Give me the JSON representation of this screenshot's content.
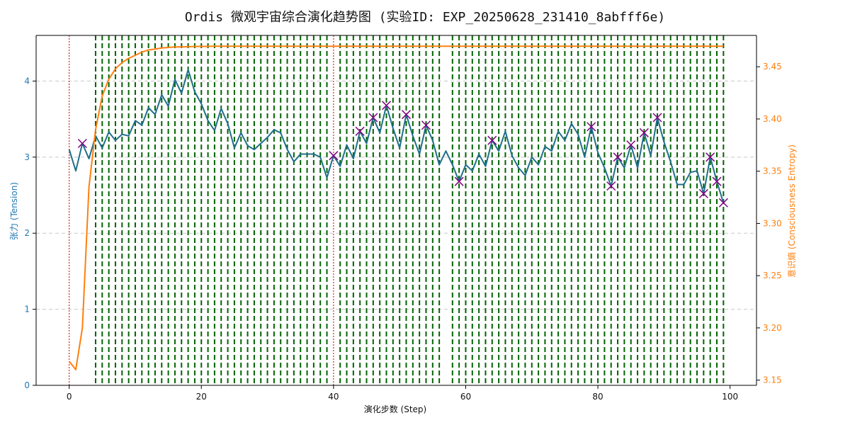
{
  "chart_data": {
    "type": "line",
    "title": "Ordis 微观宇宙综合演化趋势图 (实验ID: EXP_20250628_231410_8abfff6e)",
    "xlabel": "演化步数 (Step)",
    "ylabel_left": "张力 (Tension)",
    "ylabel_right": "意识熵 (Consciousness Entropy)",
    "xlim": [
      -5,
      104
    ],
    "ylim_left": [
      0,
      4.6
    ],
    "ylim_right": [
      3.145,
      3.48
    ],
    "x_ticks": [
      0,
      20,
      40,
      60,
      80,
      100
    ],
    "y_ticks_left": [
      0,
      1,
      2,
      3,
      4
    ],
    "y_ticks_right": [
      3.15,
      3.2,
      3.25,
      3.3,
      3.35,
      3.4,
      3.45
    ],
    "y_ticks_right_labels": [
      "3.15",
      "3.20",
      "3.25",
      "3.30",
      "3.35",
      "3.40",
      "3.45"
    ],
    "grid": "horizontal dashed",
    "colors": {
      "tension": "#1f6f8b",
      "entropy": "#ff7f0e",
      "green_lines": "#006400",
      "red_lines": "#d62728",
      "markers": "#800080",
      "left_axis": "#1f77b4",
      "right_axis": "#ff7f0e"
    },
    "series": [
      {
        "axis": "left",
        "x": [
          0,
          1,
          2,
          3,
          4,
          5,
          6,
          7,
          8,
          9,
          10,
          11,
          12,
          13,
          14,
          15,
          16,
          17,
          18,
          19,
          20,
          21,
          22,
          23,
          24,
          25,
          26,
          27,
          28,
          29,
          30,
          31,
          32,
          33,
          34,
          35,
          36,
          37,
          38,
          39,
          40,
          41,
          42,
          43,
          44,
          45,
          46,
          47,
          48,
          49,
          50,
          51,
          52,
          53,
          54,
          55,
          56,
          57,
          58,
          59,
          60,
          61,
          62,
          63,
          64,
          65,
          66,
          67,
          68,
          69,
          70,
          71,
          72,
          73,
          74,
          75,
          76,
          77,
          78,
          79,
          80,
          81,
          82,
          83,
          84,
          85,
          86,
          87,
          88,
          89,
          90,
          91,
          92,
          93,
          94,
          95,
          96,
          97,
          98,
          99
        ],
        "values": [
          3.1,
          2.82,
          3.18,
          2.98,
          3.28,
          3.12,
          3.33,
          3.22,
          3.3,
          3.28,
          3.48,
          3.42,
          3.65,
          3.56,
          3.82,
          3.67,
          4.02,
          3.84,
          4.15,
          3.86,
          3.7,
          3.48,
          3.35,
          3.64,
          3.44,
          3.12,
          3.32,
          3.15,
          3.1,
          3.18,
          3.26,
          3.36,
          3.32,
          3.1,
          2.94,
          3.04,
          3.04,
          3.04,
          3.0,
          2.73,
          3.02,
          2.88,
          3.16,
          2.98,
          3.34,
          3.18,
          3.52,
          3.32,
          3.68,
          3.38,
          3.12,
          3.56,
          3.28,
          3.04,
          3.42,
          3.22,
          2.9,
          3.08,
          2.9,
          2.68,
          2.9,
          2.82,
          3.04,
          2.88,
          3.22,
          3.08,
          3.34,
          3.02,
          2.86,
          2.76,
          3.0,
          2.9,
          3.14,
          3.08,
          3.34,
          3.22,
          3.44,
          3.3,
          3.0,
          3.4,
          3.06,
          2.86,
          2.62,
          3.0,
          2.86,
          3.16,
          2.86,
          3.32,
          3.02,
          3.52,
          3.2,
          2.94,
          2.64,
          2.64,
          2.8,
          2.82,
          2.52,
          3.0,
          2.68,
          2.4
        ]
      },
      {
        "axis": "right",
        "x": [
          0,
          1,
          2,
          3,
          4,
          5,
          6,
          7,
          8,
          9,
          10,
          11,
          12,
          13,
          14,
          15,
          16,
          17,
          18,
          19,
          20,
          21,
          22,
          23,
          24,
          25,
          26,
          27,
          28,
          29,
          30,
          31,
          32,
          33,
          34,
          35,
          36,
          37,
          38,
          39,
          40,
          41,
          42,
          43,
          44,
          45,
          46,
          47,
          48,
          49,
          50,
          51,
          52,
          53,
          54,
          55,
          56,
          57,
          58,
          59,
          60,
          61,
          62,
          63,
          64,
          65,
          66,
          67,
          68,
          69,
          70,
          71,
          72,
          73,
          74,
          75,
          76,
          77,
          78,
          79,
          80,
          81,
          82,
          83,
          84,
          85,
          86,
          87,
          88,
          89,
          90,
          91,
          92,
          93,
          94,
          95,
          96,
          97,
          98,
          99
        ],
        "values": [
          3.168,
          3.16,
          3.2,
          3.335,
          3.39,
          3.422,
          3.438,
          3.448,
          3.454,
          3.458,
          3.461,
          3.464,
          3.466,
          3.467,
          3.468,
          3.4685,
          3.469,
          3.469,
          3.4692,
          3.4694,
          3.4695,
          3.4695,
          3.4696,
          3.4696,
          3.4696,
          3.4697,
          3.4697,
          3.4697,
          3.4697,
          3.4697,
          3.4697,
          3.4697,
          3.4697,
          3.4697,
          3.4697,
          3.4697,
          3.4697,
          3.4697,
          3.4697,
          3.4697,
          3.4697,
          3.4697,
          3.4697,
          3.4697,
          3.4697,
          3.4697,
          3.4697,
          3.4697,
          3.4697,
          3.4697,
          3.4697,
          3.4697,
          3.4697,
          3.4697,
          3.4697,
          3.4697,
          3.4697,
          3.4697,
          3.4697,
          3.4697,
          3.4697,
          3.4697,
          3.4697,
          3.4697,
          3.4697,
          3.4697,
          3.4697,
          3.4697,
          3.4697,
          3.4697,
          3.4697,
          3.4697,
          3.4697,
          3.4697,
          3.4697,
          3.4697,
          3.4697,
          3.4697,
          3.4697,
          3.4697,
          3.4697,
          3.4697,
          3.4697,
          3.4697,
          3.4697,
          3.4697,
          3.4697,
          3.4697,
          3.4697,
          3.4697,
          3.4697,
          3.4697,
          3.4697,
          3.4697,
          3.4697,
          3.4697,
          3.4697,
          3.4697,
          3.4697,
          3.4697
        ]
      }
    ],
    "markers_x": [
      2,
      40,
      44,
      46,
      48,
      51,
      54,
      59,
      64,
      79,
      82,
      83,
      85,
      87,
      89,
      96,
      97,
      98,
      99
    ],
    "green_line_x": [
      4,
      5,
      6,
      7,
      8,
      9,
      10,
      11,
      12,
      13,
      14,
      15,
      16,
      17,
      18,
      19,
      20,
      21,
      22,
      23,
      24,
      25,
      26,
      27,
      28,
      29,
      30,
      31,
      32,
      33,
      34,
      35,
      36,
      37,
      38,
      39,
      41,
      42,
      43,
      44,
      45,
      46,
      47,
      48,
      49,
      50,
      51,
      52,
      53,
      54,
      55,
      56,
      58,
      59,
      60,
      61,
      62,
      63,
      64,
      65,
      66,
      67,
      68,
      69,
      70,
      71,
      72,
      73,
      74,
      75,
      76,
      77,
      78,
      79,
      80,
      81,
      82,
      83,
      84,
      85,
      86,
      87,
      88,
      89,
      90,
      91,
      92,
      93,
      94,
      95,
      96,
      97,
      98,
      99
    ],
    "red_line_x": [
      0,
      40
    ]
  }
}
